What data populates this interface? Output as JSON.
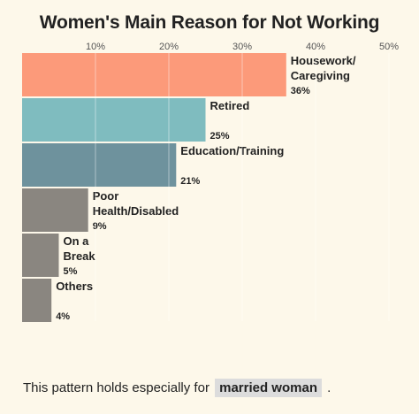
{
  "chart_data": {
    "type": "bar",
    "orientation": "horizontal",
    "title": "Women's Main Reason for Not Working",
    "xlim": [
      0,
      50
    ],
    "ticks": [
      "10%",
      "20%",
      "30%",
      "40%",
      "50%"
    ],
    "tick_values": [
      10,
      20,
      30,
      40,
      50
    ],
    "grid": true,
    "categories": [
      [
        "Housework/",
        "Caregiving"
      ],
      [
        "Retired"
      ],
      [
        "Education/Training"
      ],
      [
        "Poor",
        "Health/Disabled"
      ],
      [
        "On a",
        "Break"
      ],
      [
        "Others"
      ]
    ],
    "values": [
      36,
      25,
      21,
      9,
      5,
      4
    ],
    "value_labels": [
      "36%",
      "25%",
      "21%",
      "9%",
      "5%",
      "4%"
    ],
    "colors": [
      "#fc9a7a",
      "#7fbcbf",
      "#6e929d",
      "#8a8680",
      "#8a8680",
      "#8a8680"
    ]
  },
  "footer": {
    "prefix": "This pattern holds especially for",
    "highlight": "married woman",
    "suffix": "."
  }
}
